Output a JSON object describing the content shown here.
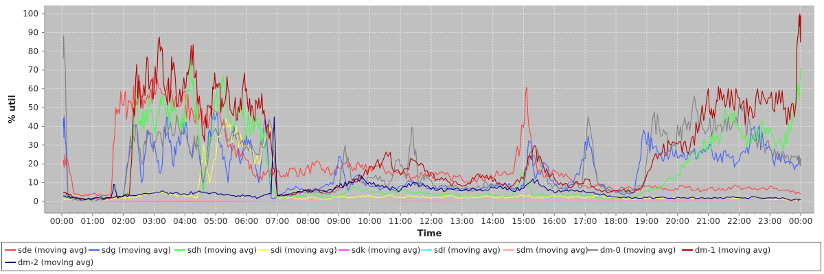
{
  "chart_data": {
    "type": "line",
    "title": "",
    "xlabel": "Time",
    "ylabel": "% util",
    "ylim": [
      0,
      100
    ],
    "xlim": [
      0,
      24.2
    ],
    "yticks": [
      "0",
      "10",
      "20",
      "30",
      "40",
      "50",
      "60",
      "70",
      "80",
      "90",
      "100"
    ],
    "xticks": [
      "00:00",
      "01:00",
      "02:00",
      "03:00",
      "04:00",
      "05:00",
      "06:00",
      "07:00",
      "08:00",
      "09:00",
      "10:00",
      "11:00",
      "12:00",
      "13:00",
      "14:00",
      "15:00",
      "16:00",
      "17:00",
      "18:00",
      "19:00",
      "20:00",
      "21:00",
      "22:00",
      "23:00",
      "00:00"
    ],
    "grid": true,
    "legend_position": "bottom",
    "background": "#c0c0c0",
    "series": [
      {
        "name": "sde (moving avg)",
        "color": "#ff4040",
        "x": [
          0.05,
          0.2,
          0.4,
          0.7,
          1.0,
          1.3,
          1.6,
          1.75,
          2.0,
          2.2,
          2.4,
          2.6,
          2.8,
          3.0,
          3.3,
          3.6,
          3.9,
          4.2,
          4.5,
          4.8,
          5.2,
          5.6,
          6.0,
          6.3,
          6.6,
          6.9,
          7.2,
          7.5,
          7.8,
          8.2,
          8.5,
          8.8,
          9.2,
          9.5,
          9.8,
          10.2,
          10.6,
          11.0,
          11.4,
          11.8,
          12.2,
          12.6,
          13.0,
          13.4,
          13.8,
          14.2,
          14.6,
          14.9,
          15.1,
          15.3,
          15.6,
          15.9,
          16.3,
          16.7,
          17.1,
          17.5,
          17.9,
          18.3,
          18.7,
          19.0,
          19.4,
          19.8,
          20.2,
          20.6,
          21.0,
          21.4,
          21.8,
          22.2,
          22.6,
          23.0,
          23.4,
          23.8,
          24.0
        ],
        "values": [
          22,
          21,
          4,
          3,
          4,
          3,
          3,
          50,
          51,
          53,
          54,
          56,
          57,
          58,
          57,
          55,
          53,
          50,
          48,
          44,
          40,
          30,
          22,
          13,
          14,
          16,
          14,
          17,
          15,
          19,
          17,
          15,
          20,
          18,
          17,
          19,
          16,
          15,
          13,
          15,
          14,
          13,
          12,
          12,
          13,
          14,
          15,
          30,
          61,
          20,
          16,
          15,
          13,
          10,
          7,
          8,
          6,
          7,
          6,
          8,
          7,
          6,
          8,
          6,
          7,
          6,
          8,
          7,
          6,
          8,
          6,
          5,
          4
        ]
      },
      {
        "name": "sdg (moving avg)",
        "color": "#4060ff",
        "x": [
          0.05,
          0.1,
          0.2,
          0.4,
          0.8,
          1.2,
          1.6,
          2.0,
          2.2,
          2.4,
          2.6,
          2.8,
          3.0,
          3.2,
          3.4,
          3.6,
          3.8,
          4.0,
          4.2,
          4.4,
          4.6,
          4.8,
          5.0,
          5.2,
          5.4,
          5.6,
          5.8,
          6.0,
          6.2,
          6.4,
          6.6,
          6.8,
          7.0,
          7.3,
          7.6,
          8.0,
          8.4,
          8.8,
          9.0,
          9.3,
          9.6,
          10.0,
          10.4,
          10.8,
          11.2,
          11.6,
          12.0,
          12.4,
          12.8,
          13.2,
          13.6,
          14.0,
          14.4,
          14.8,
          15.0,
          15.2,
          15.4,
          15.7,
          16.0,
          16.4,
          16.8,
          17.1,
          17.4,
          17.8,
          18.2,
          18.6,
          18.9,
          19.2,
          19.5,
          19.8,
          20.1,
          20.4,
          20.7,
          21.0,
          21.3,
          21.6,
          21.9,
          22.2,
          22.5,
          22.8,
          23.1,
          23.4,
          23.7,
          24.0
        ],
        "values": [
          40,
          39,
          2,
          1,
          1,
          1,
          2,
          3,
          25,
          40,
          10,
          38,
          32,
          15,
          45,
          20,
          35,
          40,
          25,
          30,
          5,
          38,
          45,
          30,
          10,
          40,
          20,
          35,
          25,
          10,
          44,
          2,
          2,
          6,
          8,
          5,
          7,
          9,
          24,
          6,
          14,
          8,
          7,
          6,
          10,
          9,
          7,
          8,
          6,
          7,
          6,
          8,
          10,
          6,
          9,
          32,
          12,
          20,
          9,
          6,
          14,
          35,
          10,
          6,
          4,
          5,
          38,
          28,
          22,
          30,
          25,
          24,
          26,
          28,
          21,
          24,
          20,
          26,
          40,
          30,
          22,
          25,
          21,
          19
        ]
      },
      {
        "name": "sdh (moving avg)",
        "color": "#40ff40",
        "x": [
          0.05,
          0.2,
          0.4,
          0.8,
          1.2,
          1.6,
          2.0,
          2.2,
          2.4,
          2.6,
          2.8,
          3.0,
          3.2,
          3.4,
          3.6,
          3.8,
          4.0,
          4.2,
          4.4,
          4.6,
          4.8,
          5.0,
          5.2,
          5.4,
          5.6,
          5.8,
          6.0,
          6.2,
          6.4,
          6.6,
          6.8,
          7.0,
          7.4,
          7.8,
          8.2,
          8.6,
          9.0,
          9.4,
          9.8,
          10.2,
          10.6,
          11.0,
          11.4,
          11.8,
          12.2,
          12.6,
          13.0,
          13.4,
          13.8,
          14.2,
          14.6,
          15.0,
          15.3,
          15.6,
          15.9,
          16.2,
          16.6,
          17.0,
          17.4,
          17.8,
          18.2,
          18.6,
          19.0,
          19.4,
          19.8,
          20.2,
          20.6,
          21.0,
          21.3,
          21.6,
          21.9,
          22.2,
          22.5,
          22.8,
          23.1,
          23.4,
          23.7,
          24.0
        ],
        "values": [
          3,
          2,
          1,
          1,
          1,
          2,
          3,
          5,
          60,
          40,
          50,
          38,
          55,
          45,
          48,
          40,
          50,
          75,
          42,
          5,
          35,
          55,
          60,
          45,
          40,
          52,
          38,
          45,
          40,
          30,
          8,
          2,
          2,
          3,
          4,
          2,
          3,
          7,
          6,
          5,
          4,
          6,
          5,
          4,
          3,
          4,
          3,
          2,
          4,
          3,
          2,
          15,
          3,
          4,
          2,
          3,
          4,
          3,
          2,
          1,
          2,
          2,
          6,
          8,
          12,
          18,
          24,
          30,
          35,
          45,
          40,
          35,
          32,
          40,
          35,
          30,
          40,
          71
        ]
      },
      {
        "name": "sdi (moving avg)",
        "color": "#ffff40",
        "x": [
          0.05,
          0.4,
          0.8,
          1.2,
          1.6,
          2.0,
          2.4,
          2.6,
          2.8,
          3.0,
          3.4,
          3.8,
          4.2,
          4.4,
          4.6,
          4.8,
          5.2,
          5.6,
          6.0,
          6.4,
          6.8,
          7.0,
          7.4,
          7.8,
          8.2,
          8.6,
          9.0,
          9.4,
          9.8,
          10.2,
          10.6,
          11.0,
          11.4,
          11.8,
          12.2,
          12.6,
          13.0,
          13.4,
          13.8,
          14.2,
          14.6,
          15.0,
          15.4,
          15.8,
          16.2,
          16.6,
          17.0,
          17.4,
          17.8,
          18.2,
          18.6,
          19.0,
          19.6,
          20.2,
          20.8,
          21.4,
          22.0,
          22.6,
          23.2,
          23.8,
          24.0
        ],
        "values": [
          1,
          1,
          1,
          1,
          1,
          2,
          2,
          3,
          4,
          5,
          4,
          3,
          3,
          2,
          30,
          10,
          40,
          35,
          30,
          20,
          40,
          2,
          2,
          1,
          2,
          1,
          3,
          2,
          3,
          2,
          3,
          2,
          3,
          2,
          2,
          3,
          2,
          2,
          3,
          2,
          2,
          3,
          2,
          2,
          3,
          2,
          2,
          3,
          2,
          2,
          1,
          2,
          2,
          2,
          2,
          2,
          2,
          2,
          1,
          1,
          1
        ]
      },
      {
        "name": "sdk (moving avg)",
        "color": "#ff40ff",
        "x": [
          0.05,
          24.0
        ],
        "values": [
          0,
          0
        ]
      },
      {
        "name": "sdl (moving avg)",
        "color": "#40ffff",
        "x": [
          0.05,
          24.0
        ],
        "values": [
          0,
          0
        ]
      },
      {
        "name": "sdm (moving avg)",
        "color": "#ffa0a0",
        "x": [
          0.05,
          24.0
        ],
        "values": [
          0,
          0
        ]
      },
      {
        "name": "dm-0 (moving avg)",
        "color": "#808080",
        "x": [
          0.05,
          0.1,
          0.2,
          0.4,
          0.8,
          1.2,
          1.6,
          2.0,
          2.2,
          2.4,
          2.6,
          2.8,
          3.0,
          3.4,
          3.8,
          4.2,
          4.4,
          4.6,
          4.8,
          5.2,
          5.6,
          6.0,
          6.4,
          6.8,
          7.0,
          7.4,
          7.8,
          8.2,
          8.6,
          9.0,
          9.2,
          9.4,
          9.8,
          10.2,
          10.6,
          10.9,
          11.2,
          11.4,
          11.6,
          11.8,
          12.2,
          12.6,
          13.0,
          13.4,
          13.8,
          14.2,
          14.6,
          15.0,
          15.2,
          15.5,
          15.8,
          16.2,
          16.6,
          16.9,
          17.1,
          17.4,
          17.8,
          18.2,
          18.6,
          18.9,
          19.2,
          19.5,
          19.8,
          20.1,
          20.3,
          20.6,
          20.9,
          21.2,
          21.5,
          21.8,
          22.1,
          22.4,
          22.7,
          23.0,
          23.3,
          23.6,
          23.9,
          24.0
        ],
        "values": [
          76,
          75,
          4,
          1,
          1,
          1,
          2,
          3,
          30,
          40,
          20,
          38,
          30,
          35,
          40,
          25,
          35,
          10,
          30,
          40,
          35,
          30,
          25,
          40,
          3,
          3,
          5,
          5,
          4,
          6,
          30,
          12,
          10,
          14,
          8,
          22,
          12,
          39,
          8,
          14,
          6,
          8,
          7,
          6,
          10,
          8,
          6,
          7,
          26,
          24,
          9,
          7,
          10,
          8,
          45,
          10,
          6,
          5,
          7,
          8,
          45,
          35,
          30,
          40,
          38,
          50,
          36,
          45,
          40,
          42,
          48,
          36,
          30,
          28,
          22,
          24,
          22,
          23
        ]
      },
      {
        "name": "dm-1 (moving avg)",
        "color": "#b00000",
        "x": [
          0.05,
          0.2,
          0.4,
          0.8,
          1.2,
          1.6,
          2.0,
          2.2,
          2.4,
          2.6,
          2.8,
          3.0,
          3.2,
          3.4,
          3.6,
          3.8,
          4.0,
          4.2,
          4.4,
          4.6,
          4.8,
          5.0,
          5.2,
          5.4,
          5.6,
          5.8,
          6.0,
          6.2,
          6.4,
          6.6,
          6.8,
          7.0,
          7.4,
          7.8,
          8.2,
          8.6,
          9.0,
          9.4,
          9.8,
          10.2,
          10.6,
          11.0,
          11.4,
          11.8,
          12.2,
          12.6,
          13.0,
          13.4,
          13.8,
          14.2,
          14.6,
          15.0,
          15.3,
          15.6,
          15.9,
          16.2,
          16.6,
          17.0,
          17.4,
          17.8,
          18.2,
          18.6,
          18.9,
          19.2,
          19.5,
          19.8,
          20.1,
          20.4,
          20.7,
          21.0,
          21.2,
          21.4,
          21.7,
          22.0,
          22.3,
          22.6,
          22.9,
          23.2,
          23.5,
          23.8,
          23.95,
          24.0
        ],
        "values": [
          5,
          4,
          2,
          1,
          1,
          2,
          3,
          4,
          65,
          55,
          75,
          60,
          80,
          55,
          70,
          55,
          60,
          83,
          55,
          35,
          50,
          60,
          55,
          60,
          50,
          55,
          60,
          50,
          55,
          45,
          30,
          3,
          4,
          5,
          6,
          5,
          8,
          10,
          14,
          20,
          24,
          14,
          22,
          16,
          12,
          10,
          8,
          12,
          14,
          10,
          8,
          12,
          28,
          20,
          14,
          10,
          8,
          12,
          6,
          5,
          6,
          5,
          10,
          22,
          26,
          30,
          32,
          28,
          40,
          60,
          45,
          60,
          50,
          55,
          45,
          60,
          52,
          58,
          50,
          45,
          99,
          99
        ]
      },
      {
        "name": "dm-2 (moving avg)",
        "color": "#000080",
        "x": [
          0.05,
          0.4,
          0.8,
          1.2,
          1.6,
          1.7,
          1.8,
          2.0,
          2.4,
          2.8,
          3.2,
          3.6,
          4.0,
          4.4,
          4.8,
          5.2,
          5.6,
          6.0,
          6.4,
          6.8,
          6.9,
          7.0,
          7.4,
          7.8,
          8.2,
          8.6,
          9.0,
          9.4,
          9.8,
          10.2,
          10.6,
          11.0,
          11.4,
          11.8,
          12.2,
          12.6,
          13.0,
          13.4,
          13.8,
          14.2,
          14.6,
          15.0,
          15.3,
          15.6,
          15.9,
          16.2,
          16.6,
          17.0,
          17.4,
          17.8,
          18.2,
          18.6,
          19.0,
          19.6,
          20.2,
          20.8,
          21.4,
          22.0,
          22.6,
          23.2,
          23.8,
          24.0
        ],
        "values": [
          3,
          2,
          1,
          2,
          2,
          9,
          2,
          3,
          3,
          4,
          5,
          4,
          4,
          5,
          4,
          4,
          3,
          3,
          2,
          4,
          45,
          3,
          4,
          5,
          6,
          5,
          8,
          10,
          12,
          8,
          7,
          6,
          10,
          8,
          6,
          7,
          6,
          7,
          6,
          8,
          6,
          7,
          12,
          8,
          6,
          5,
          6,
          5,
          4,
          3,
          2,
          2,
          2,
          2,
          2,
          2,
          2,
          2,
          2,
          2,
          1,
          1
        ]
      }
    ]
  }
}
